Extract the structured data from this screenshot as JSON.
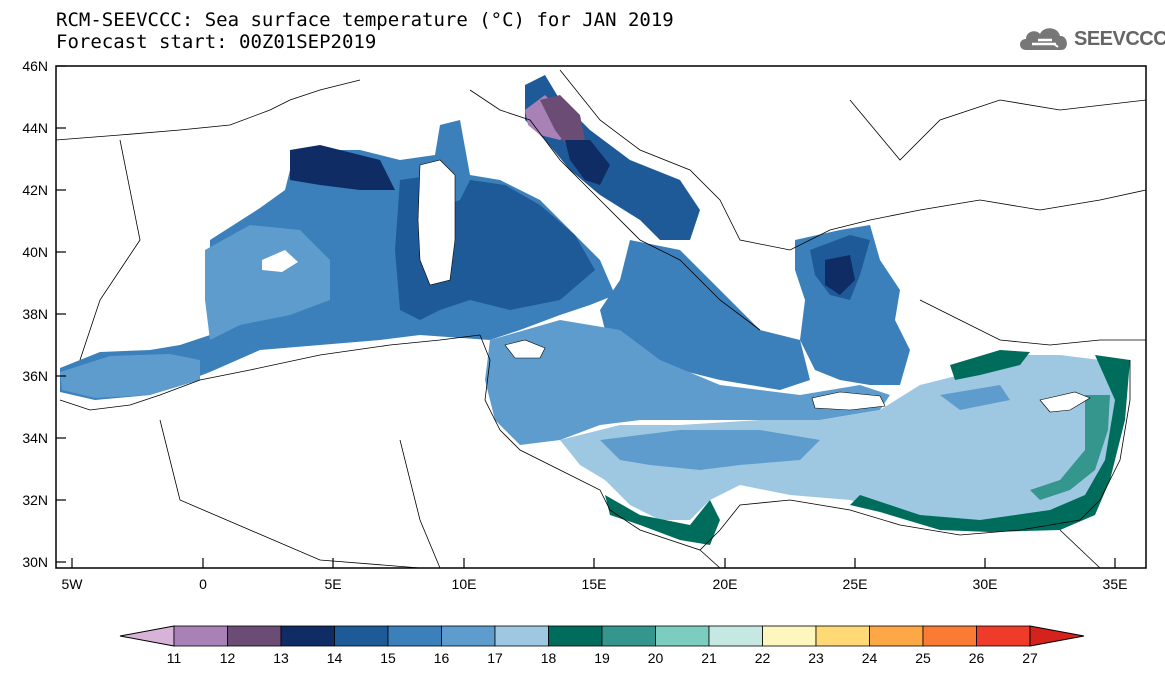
{
  "title": {
    "line1": "RCM-SEEVCCC: Sea surface temperature (°C) for JAN 2019",
    "line2": "Forecast start: 00Z01SEP2019"
  },
  "logo": {
    "text": "SEEVCCC",
    "icon": "cloud-icon"
  },
  "map": {
    "region": "Mediterranean Sea",
    "variable": "Sea surface temperature",
    "lon_range": [
      -5.5,
      36.5
    ],
    "lat_range": [
      29.8,
      46.0
    ]
  },
  "lat_labels": [
    "46N",
    "44N",
    "42N",
    "40N",
    "38N",
    "36N",
    "34N",
    "32N",
    "30N"
  ],
  "lon_labels": [
    "5W",
    "0",
    "5E",
    "10E",
    "15E",
    "20E",
    "25E",
    "30E",
    "35E"
  ],
  "colorbar": {
    "labels": [
      "11",
      "12",
      "13",
      "14",
      "15",
      "16",
      "17",
      "18",
      "19",
      "20",
      "21",
      "22",
      "23",
      "24",
      "25",
      "26",
      "27"
    ],
    "colors": [
      "#d7b4d7",
      "#a882b6",
      "#6a4c74",
      "#0f2c64",
      "#1f5a98",
      "#3b80ba",
      "#5e9ccd",
      "#9ec8e2",
      "#006d5c",
      "#34968c",
      "#7ccdc0",
      "#c6e8e3",
      "#fdf6be",
      "#fed975",
      "#fda747",
      "#fb7b35",
      "#ee3b2a",
      "#d6221d"
    ]
  }
}
